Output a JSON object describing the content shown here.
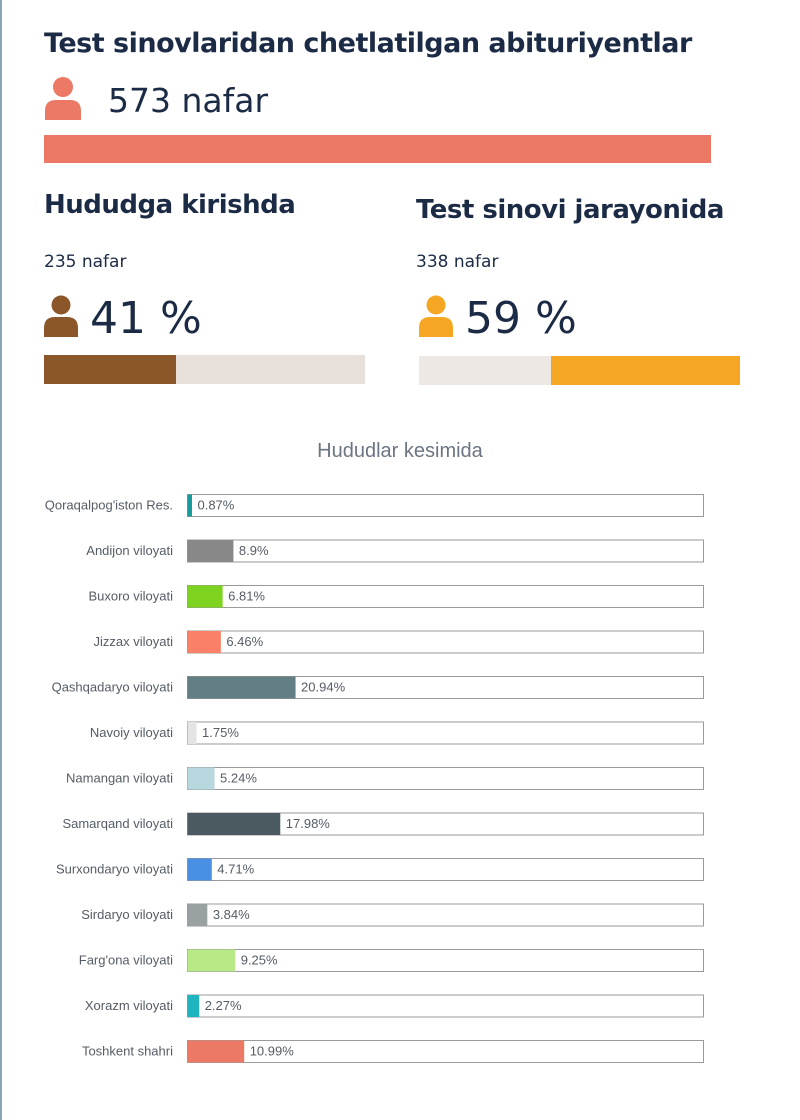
{
  "header": {
    "title": "Test sinovlaridan chetlatilgan abituriyentlar",
    "total": "573 nafar",
    "total_bar_color": "#ec7966",
    "total_icon": "person-icon",
    "total_icon_color": "#ec7966"
  },
  "sections": [
    {
      "title": "Hududga kirishda",
      "count": "235 nafar",
      "percent_label": "41 %",
      "percent": 41,
      "icon": "person-icon",
      "color": "#8b572a",
      "track_color": "#e8e0da",
      "fill_side": "left"
    },
    {
      "title": "Test sinovi jarayonida",
      "count": "338 nafar",
      "percent_label": "59 %",
      "percent": 59,
      "icon": "person-icon",
      "color": "#f5a623",
      "track_color": "#ede8e3",
      "fill_side": "right"
    }
  ],
  "chart_data": {
    "type": "bar",
    "orientation": "horizontal",
    "title": "Hududlar kesimida",
    "xlim": [
      0,
      100
    ],
    "grid": false,
    "categories": [
      "Qoraqalpog'iston Res.",
      "Andijon viloyati",
      "Buxoro viloyati",
      "Jizzax viloyati",
      "Qashqadaryo viloyati",
      "Navoiy viloyati",
      "Namangan viloyati",
      "Samarqand viloyati",
      "Surxondaryo viloyati",
      "Sirdaryo viloyati",
      "Farg'ona viloyati",
      "Xorazm viloyati",
      "Toshkent shahri"
    ],
    "values": [
      0.87,
      8.9,
      6.81,
      6.46,
      20.94,
      1.75,
      5.24,
      17.98,
      4.71,
      3.84,
      9.25,
      2.27,
      10.99
    ],
    "value_labels": [
      "0.87%",
      "8.9%",
      "6.81%",
      "6.46%",
      "20.94%",
      "1.75%",
      "5.24%",
      "17.98%",
      "4.71%",
      "3.84%",
      "9.25%",
      "2.27%",
      "10.99%"
    ],
    "colors": [
      "#1a9b9b",
      "#888888",
      "#7ed321",
      "#fa8068",
      "#637f85",
      "#e4e4e4",
      "#b8d8e0",
      "#4b5a60",
      "#4a90e2",
      "#9aa1a2",
      "#b8e986",
      "#1fb5c0",
      "#ec7966"
    ]
  }
}
